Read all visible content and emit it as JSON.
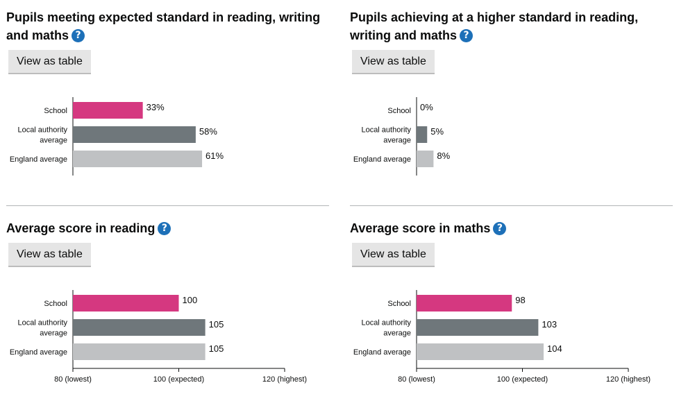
{
  "colors": {
    "school": "#d53880",
    "local": "#6f777b",
    "england": "#bfc1c3",
    "link": "#1d70b8"
  },
  "common": {
    "view_table_label": "View as table",
    "help_glyph": "?"
  },
  "panels": [
    {
      "title_line1": "Pupils meeting expected standard in reading, writing",
      "title_line2": "and maths"
    },
    {
      "title_line1": "Pupils achieving at a higher standard in reading,",
      "title_line2": "writing and maths"
    },
    {
      "title_line1": "Average score in reading",
      "title_line2": ""
    },
    {
      "title_line1": "Average score in maths",
      "title_line2": ""
    }
  ],
  "chart_data": [
    {
      "type": "bar",
      "orientation": "horizontal",
      "categories": [
        "School",
        "Local authority average",
        "England average"
      ],
      "values": [
        33,
        58,
        61
      ],
      "value_labels": [
        "33%",
        "58%",
        "61%"
      ],
      "xlim": [
        0,
        100
      ]
    },
    {
      "type": "bar",
      "orientation": "horizontal",
      "categories": [
        "School",
        "Local authority average",
        "England average"
      ],
      "values": [
        0,
        5,
        8
      ],
      "value_labels": [
        "0%",
        "5%",
        "8%"
      ],
      "xlim": [
        0,
        100
      ]
    },
    {
      "type": "bar",
      "orientation": "horizontal",
      "categories": [
        "School",
        "Local authority average",
        "England average"
      ],
      "values": [
        100,
        105,
        105
      ],
      "value_labels": [
        "100",
        "105",
        "105"
      ],
      "xlim": [
        80,
        120
      ],
      "ticks": [
        80,
        100,
        120
      ],
      "tick_labels": [
        "80 (lowest)",
        "100 (expected)",
        "120 (highest)"
      ]
    },
    {
      "type": "bar",
      "orientation": "horizontal",
      "categories": [
        "School",
        "Local authority average",
        "England average"
      ],
      "values": [
        98,
        103,
        104
      ],
      "value_labels": [
        "98",
        "103",
        "104"
      ],
      "xlim": [
        80,
        120
      ],
      "ticks": [
        80,
        100,
        120
      ],
      "tick_labels": [
        "80 (lowest)",
        "100 (expected)",
        "120 (highest)"
      ]
    }
  ]
}
